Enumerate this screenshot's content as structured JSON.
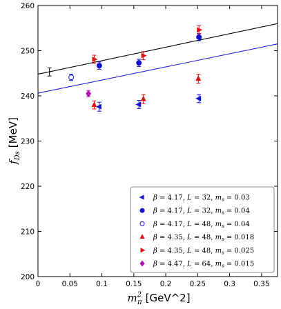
{
  "chart_data": {
    "type": "scatter",
    "xlabel_main": "m",
    "xlabel_sub": "π",
    "xlabel_sup": "2",
    "xlabel_unit": "[GeV^2]",
    "ylabel_main": "f",
    "ylabel_sub": "Ds",
    "ylabel_unit": "[MeV]",
    "xlim": [
      0,
      0.375
    ],
    "ylim": [
      200,
      260
    ],
    "xticks": [
      0,
      0.05,
      0.1,
      0.15,
      0.2,
      0.25,
      0.3,
      0.35
    ],
    "xtick_labels": [
      "0",
      "0.05",
      "0.1",
      "0.15",
      "0.2",
      "0.25",
      "0.3",
      "0.35"
    ],
    "yticks": [
      200,
      210,
      220,
      230,
      240,
      250,
      260
    ],
    "ytick_labels": [
      "200",
      "210",
      "220",
      "230",
      "240",
      "250",
      "260"
    ],
    "grid": false,
    "legend_position": "bottom-right",
    "fit_lines": [
      {
        "color": "#000000",
        "x": [
          0,
          0.375
        ],
        "y": [
          244.8,
          256.0
        ]
      },
      {
        "color": "#1f1fd6",
        "x": [
          0,
          0.375
        ],
        "y": [
          240.6,
          251.5
        ]
      }
    ],
    "continuum_point": {
      "x": 0.018,
      "y": 245.3,
      "err": 0.9,
      "color": "#000000"
    },
    "series": [
      {
        "name": "β = 4.17, L = 32, m_s = 0.03",
        "marker": "triangle-left",
        "color": "#1010d0",
        "x": [
          0.096,
          0.158,
          0.252
        ],
        "y": [
          237.6,
          238.1,
          239.4
        ],
        "err": [
          1.0,
          0.9,
          0.9
        ]
      },
      {
        "name": "β = 4.17, L = 32, m_s = 0.04",
        "marker": "circle",
        "color": "#1010d0",
        "x": [
          0.096,
          0.158,
          0.252
        ],
        "y": [
          246.7,
          247.3,
          253.0
        ],
        "err": [
          0.8,
          0.8,
          0.8
        ]
      },
      {
        "name": "β = 4.17, L = 48, m_s = 0.04",
        "marker": "circle-open",
        "color": "#1010d0",
        "x": [
          0.052
        ],
        "y": [
          244.1
        ],
        "err": [
          0.7
        ]
      },
      {
        "name": "β = 4.35, L = 48, m_s = 0.018",
        "marker": "triangle-up",
        "color": "#e01010",
        "x": [
          0.088,
          0.165,
          0.251
        ],
        "y": [
          238.0,
          239.3,
          243.8
        ],
        "err": [
          0.9,
          1.0,
          1.0
        ]
      },
      {
        "name": "β = 4.35, L = 48, m_s = 0.025",
        "marker": "triangle-right",
        "color": "#e01010",
        "x": [
          0.088,
          0.165,
          0.252
        ],
        "y": [
          248.1,
          248.9,
          254.6
        ],
        "err": [
          0.9,
          0.9,
          0.9
        ]
      },
      {
        "name": "β = 4.47, L = 64, m_s = 0.015",
        "marker": "diamond",
        "color": "#b010b0",
        "x": [
          0.079
        ],
        "y": [
          240.5
        ],
        "err": [
          0.7
        ]
      }
    ],
    "legend_entries": [
      {
        "beta": "4.17",
        "L": "32",
        "ms": "0.03"
      },
      {
        "beta": "4.17",
        "L": "32",
        "ms": "0.04"
      },
      {
        "beta": "4.17",
        "L": "48",
        "ms": "0.04"
      },
      {
        "beta": "4.35",
        "L": "48",
        "ms": "0.018"
      },
      {
        "beta": "4.35",
        "L": "48",
        "ms": "0.025"
      },
      {
        "beta": "4.47",
        "L": "64",
        "ms": "0.015"
      }
    ]
  }
}
